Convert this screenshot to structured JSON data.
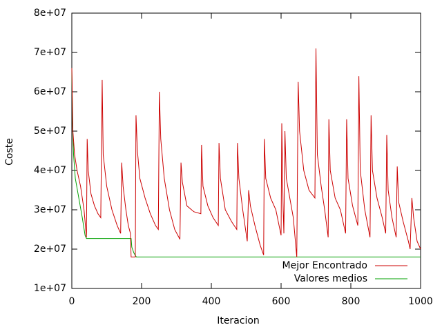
{
  "chart_data": {
    "type": "line",
    "xlabel": "Iteracion",
    "ylabel": "Coste",
    "xlim": [
      0,
      1000
    ],
    "xticks": [
      0,
      200,
      400,
      600,
      800,
      1000
    ],
    "ylim": [
      10000000.0,
      80000000.0
    ],
    "yticks": [
      {
        "value": 10000000.0,
        "label": "1e+07"
      },
      {
        "value": 20000000.0,
        "label": "2e+07"
      },
      {
        "value": 30000000.0,
        "label": "3e+07"
      },
      {
        "value": 40000000.0,
        "label": "4e+07"
      },
      {
        "value": 50000000.0,
        "label": "5e+07"
      },
      {
        "value": 60000000.0,
        "label": "6e+07"
      },
      {
        "value": 70000000.0,
        "label": "7e+07"
      },
      {
        "value": 80000000.0,
        "label": "8e+07"
      }
    ],
    "legend": "lower right",
    "series": [
      {
        "name": "Mejor Encontrado",
        "color": "#cc0000",
        "x": [
          0,
          3,
          8,
          15,
          25,
          35,
          42,
          44,
          47,
          55,
          65,
          75,
          83,
          87,
          90,
          100,
          115,
          130,
          140,
          143,
          147,
          155,
          162,
          168,
          170,
          182,
          184,
          188,
          195,
          210,
          225,
          240,
          248,
          251,
          255,
          265,
          280,
          295,
          310,
          313,
          317,
          330,
          350,
          370,
          372,
          376,
          390,
          405,
          420,
          422,
          426,
          440,
          458,
          473,
          475,
          479,
          490,
          503,
          507,
          512,
          525,
          540,
          550,
          552,
          556,
          570,
          585,
          600,
          602,
          606,
          608,
          611,
          615,
          625,
          635,
          645,
          649,
          653,
          665,
          680,
          697,
          700,
          704,
          715,
          725,
          735,
          737,
          741,
          755,
          770,
          785,
          788,
          792,
          805,
          820,
          823,
          827,
          840,
          855,
          858,
          862,
          875,
          890,
          900,
          903,
          907,
          918,
          930,
          933,
          937,
          950,
          965,
          970,
          975,
          980,
          990,
          1000
        ],
        "values": [
          66000000.0,
          50000000.0,
          44000000.0,
          40000000.0,
          36000000.0,
          30000000.0,
          23000000.0,
          48000000.0,
          40000000.0,
          34000000.0,
          31000000.0,
          29000000.0,
          28000000.0,
          63000000.0,
          44000000.0,
          36000000.0,
          30000000.0,
          26000000.0,
          24000000.0,
          42000000.0,
          36000000.0,
          30000000.0,
          26000000.0,
          24000000.0,
          18000000.0,
          18000000.0,
          54000000.0,
          45000000.0,
          38000000.0,
          33000000.0,
          29000000.0,
          26000000.0,
          25000000.0,
          60000000.0,
          48000000.0,
          38000000.0,
          30000000.0,
          25000000.0,
          22500000.0,
          42000000.0,
          37000000.0,
          31000000.0,
          29500000.0,
          29000000.0,
          46500000.0,
          36000000.0,
          31000000.0,
          28000000.0,
          26000000.0,
          47000000.0,
          38000000.0,
          30000000.0,
          27000000.0,
          25000000.0,
          47000000.0,
          38000000.0,
          30000000.0,
          22000000.0,
          35000000.0,
          31000000.0,
          26000000.0,
          21000000.0,
          18500000.0,
          48000000.0,
          38000000.0,
          33000000.0,
          30000000.0,
          23500000.0,
          52000000.0,
          30000000.0,
          24000000.0,
          50000000.0,
          38000000.0,
          33000000.0,
          28000000.0,
          18000000.0,
          62500000.0,
          50000000.0,
          40000000.0,
          35000000.0,
          33000000.0,
          71000000.0,
          44000000.0,
          36000000.0,
          30000000.0,
          23000000.0,
          53000000.0,
          40000000.0,
          33000000.0,
          30000000.0,
          24000000.0,
          53000000.0,
          38000000.0,
          31000000.0,
          26000000.0,
          64000000.0,
          40000000.0,
          30000000.0,
          23000000.0,
          54000000.0,
          40000000.0,
          33000000.0,
          28000000.0,
          24000000.0,
          49000000.0,
          35000000.0,
          28000000.0,
          23000000.0,
          41000000.0,
          32000000.0,
          27000000.0,
          22000000.0,
          20000000.0,
          33000000.0,
          28000000.0,
          22000000.0,
          20000000.0
        ]
      },
      {
        "name": "Valores medios",
        "color": "#00a000",
        "x": [
          0,
          2,
          5,
          10,
          20,
          30,
          38,
          42,
          170,
          172,
          178,
          185,
          1000
        ],
        "values": [
          66000000.0,
          52000000.0,
          44000000.0,
          38000000.0,
          33000000.0,
          28000000.0,
          23500000.0,
          22700000.0,
          22700000.0,
          20500000.0,
          19000000.0,
          18000000.0,
          18000000.0
        ]
      }
    ]
  }
}
